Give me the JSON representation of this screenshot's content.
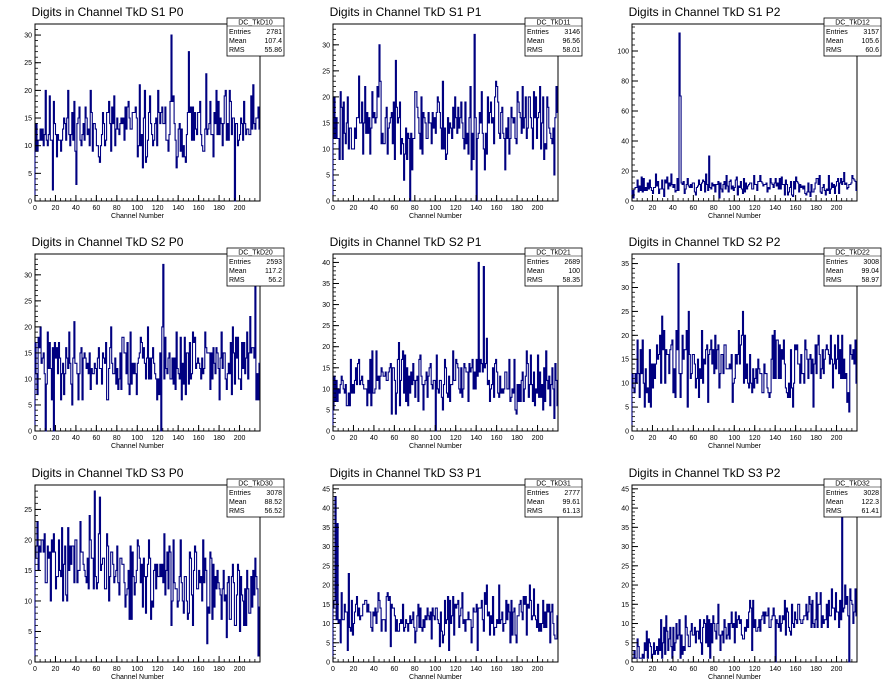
{
  "page": {
    "background": "#ffffff"
  },
  "style": {
    "line_color": "#000080",
    "frame_color": "#000000"
  },
  "chart_data": [
    {
      "type": "line",
      "title": "Digits in Channel TkD S1 P0",
      "xlabel": "Channel Number",
      "xlim": [
        0,
        220
      ],
      "ylim": [
        0,
        32
      ],
      "yticks": [
        0,
        5,
        10,
        15,
        20,
        25,
        30
      ],
      "xticks": [
        0,
        20,
        40,
        60,
        80,
        100,
        120,
        140,
        160,
        180,
        200
      ],
      "stats": {
        "name": "DC_TkD10",
        "entries": "2781",
        "mean": "107.4",
        "rms": "55.86"
      },
      "seed": 11,
      "mean_level": 13,
      "spread": 5,
      "features": [
        [
          17,
          2
        ],
        [
          18,
          18
        ],
        [
          133,
          30
        ],
        [
          150,
          27
        ],
        [
          195,
          0
        ],
        [
          218,
          17
        ]
      ]
    },
    {
      "type": "line",
      "title": "Digits in Channel TkD S1 P1",
      "xlabel": "Channel Number",
      "xlim": [
        0,
        220
      ],
      "ylim": [
        0,
        34
      ],
      "yticks": [
        0,
        5,
        10,
        15,
        20,
        25,
        30
      ],
      "xticks": [
        0,
        20,
        40,
        60,
        80,
        100,
        120,
        140,
        160,
        180,
        200
      ],
      "stats": {
        "name": "DC_TkD11",
        "entries": "3146",
        "mean": "96.56",
        "rms": "58.01"
      },
      "seed": 23,
      "mean_level": 15,
      "spread": 6,
      "features": [
        [
          45,
          30
        ],
        [
          75,
          0
        ],
        [
          78,
          12
        ],
        [
          138,
          32
        ],
        [
          140,
          0
        ],
        [
          216,
          5
        ]
      ]
    },
    {
      "type": "line",
      "title": "Digits in Channel TkD S1 P2",
      "xlabel": "Channel Number",
      "xlim": [
        0,
        220
      ],
      "ylim": [
        0,
        118
      ],
      "yticks": [
        0,
        20,
        40,
        60,
        80,
        100
      ],
      "xticks": [
        0,
        20,
        40,
        60,
        80,
        100,
        120,
        140,
        160,
        180,
        200
      ],
      "stats": {
        "name": "DC_TkD12",
        "entries": "3157",
        "mean": "105.6",
        "rms": "60.6"
      },
      "seed": 37,
      "mean_level": 10,
      "spread": 5,
      "features": [
        [
          46,
          112
        ],
        [
          47,
          70
        ],
        [
          75,
          30
        ],
        [
          108,
          5
        ]
      ]
    },
    {
      "type": "line",
      "title": "Digits in Channel TkD S2 P0",
      "xlabel": "Channel Number",
      "xlim": [
        0,
        220
      ],
      "ylim": [
        0,
        34
      ],
      "yticks": [
        0,
        5,
        10,
        15,
        20,
        25,
        30
      ],
      "xticks": [
        0,
        20,
        40,
        60,
        80,
        100,
        120,
        140,
        160,
        180,
        200
      ],
      "stats": {
        "name": "DC_TkD20",
        "entries": "2593",
        "mean": "117.2",
        "rms": "56.2"
      },
      "seed": 41,
      "mean_level": 13,
      "spread": 5,
      "features": [
        [
          10,
          0
        ],
        [
          18,
          0
        ],
        [
          123,
          0
        ],
        [
          125,
          32
        ],
        [
          215,
          28
        ],
        [
          218,
          6
        ]
      ]
    },
    {
      "type": "line",
      "title": "Digits in Channel TkD S2 P1",
      "xlabel": "Channel Number",
      "xlim": [
        0,
        220
      ],
      "ylim": [
        0,
        42
      ],
      "yticks": [
        0,
        5,
        10,
        15,
        20,
        25,
        30,
        35,
        40
      ],
      "xticks": [
        0,
        20,
        40,
        60,
        80,
        100,
        120,
        140,
        160,
        180,
        200
      ],
      "stats": {
        "name": "DC_TkD21",
        "entries": "2689",
        "mean": "100",
        "rms": "58.35"
      },
      "seed": 53,
      "mean_level": 12,
      "spread": 5,
      "features": [
        [
          100,
          0
        ],
        [
          142,
          40
        ],
        [
          147,
          39
        ],
        [
          150,
          22
        ],
        [
          216,
          3
        ]
      ]
    },
    {
      "type": "line",
      "title": "Digits in Channel TkD S2 P2",
      "xlabel": "Channel Number",
      "xlim": [
        0,
        220
      ],
      "ylim": [
        0,
        37
      ],
      "yticks": [
        0,
        5,
        10,
        15,
        20,
        25,
        30,
        35
      ],
      "xticks": [
        0,
        20,
        40,
        60,
        80,
        100,
        120,
        140,
        160,
        180,
        200
      ],
      "stats": {
        "name": "DC_TkD22",
        "entries": "3008",
        "mean": "99.04",
        "rms": "58.97"
      },
      "seed": 67,
      "mean_level": 14,
      "spread": 6,
      "features": [
        [
          45,
          35
        ],
        [
          108,
          25
        ],
        [
          212,
          4
        ],
        [
          215,
          15
        ]
      ]
    },
    {
      "type": "line",
      "title": "Digits in Channel TkD S3 P0",
      "xlabel": "Channel Number",
      "xlim": [
        0,
        220
      ],
      "ylim": [
        0,
        29
      ],
      "yticks": [
        0,
        5,
        10,
        15,
        20,
        25
      ],
      "xticks": [
        0,
        20,
        40,
        60,
        80,
        100,
        120,
        140,
        160,
        180,
        200
      ],
      "stats": {
        "name": "DC_TkD30",
        "entries": "3078",
        "mean": "88.52",
        "rms": "56.52"
      },
      "seed": 71,
      "mean_level": 14,
      "spread": 5,
      "trend": -8,
      "features": [
        [
          58,
          28
        ],
        [
          63,
          27
        ],
        [
          220,
          1
        ]
      ]
    },
    {
      "type": "line",
      "title": "Digits in Channel TkD S3 P1",
      "xlabel": "Channel Number",
      "xlim": [
        0,
        220
      ],
      "ylim": [
        0,
        46
      ],
      "yticks": [
        0,
        5,
        10,
        15,
        20,
        25,
        30,
        35,
        40,
        45
      ],
      "xticks": [
        0,
        20,
        40,
        60,
        80,
        100,
        120,
        140,
        160,
        180,
        200
      ],
      "stats": {
        "name": "DC_TkD31",
        "entries": "2777",
        "mean": "99.61",
        "rms": "61.13"
      },
      "seed": 83,
      "mean_level": 12,
      "spread": 5,
      "features": [
        [
          2,
          43
        ],
        [
          4,
          36
        ],
        [
          15,
          23
        ],
        [
          212,
          5
        ]
      ]
    },
    {
      "type": "line",
      "title": "Digits in Channel TkD S3 P2",
      "xlabel": "Channel Number",
      "xlim": [
        0,
        220
      ],
      "ylim": [
        0,
        46
      ],
      "yticks": [
        0,
        5,
        10,
        15,
        20,
        25,
        30,
        35,
        40,
        45
      ],
      "xticks": [
        0,
        20,
        40,
        60,
        80,
        100,
        120,
        140,
        160,
        180,
        200
      ],
      "stats": {
        "name": "DC_TkD32",
        "entries": "3028",
        "mean": "122.3",
        "rms": "61.41"
      },
      "seed": 97,
      "mean_level": 9,
      "spread": 4,
      "trend": 12,
      "features": [
        [
          140,
          0
        ],
        [
          205,
          42
        ],
        [
          208,
          20
        ],
        [
          212,
          0
        ],
        [
          215,
          15
        ]
      ]
    }
  ]
}
